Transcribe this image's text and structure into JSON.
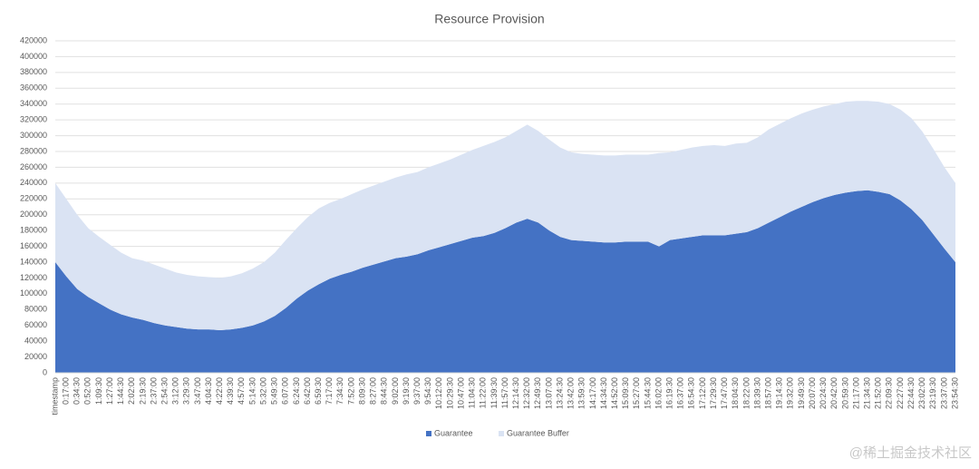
{
  "chart_data": {
    "type": "stacked_area",
    "title": "Resource Provision",
    "categories": [
      "timestamp",
      "0:17:00",
      "0:34:30",
      "0:52:00",
      "1:09:30",
      "1:27:00",
      "1:44:30",
      "2:02:00",
      "2:19:30",
      "2:37:00",
      "2:54:30",
      "3:12:00",
      "3:29:30",
      "3:47:00",
      "4:04:30",
      "4:22:00",
      "4:39:30",
      "4:57:00",
      "5:14:30",
      "5:32:00",
      "5:49:30",
      "6:07:00",
      "6:24:30",
      "6:42:00",
      "6:59:30",
      "7:17:00",
      "7:34:30",
      "7:52:00",
      "8:09:30",
      "8:27:00",
      "8:44:30",
      "9:02:00",
      "9:19:30",
      "9:37:00",
      "9:54:30",
      "10:12:00",
      "10:29:30",
      "10:47:00",
      "11:04:30",
      "11:22:00",
      "11:39:30",
      "11:57:00",
      "12:14:30",
      "12:32:00",
      "12:49:30",
      "13:07:00",
      "13:24:30",
      "13:42:00",
      "13:59:30",
      "14:17:00",
      "14:34:30",
      "14:52:00",
      "15:09:30",
      "15:27:00",
      "15:44:30",
      "16:02:00",
      "16:19:30",
      "16:37:00",
      "16:54:30",
      "17:12:00",
      "17:29:30",
      "17:47:00",
      "18:04:30",
      "18:22:00",
      "18:39:30",
      "18:57:00",
      "19:14:30",
      "19:32:00",
      "19:49:30",
      "20:07:00",
      "20:24:30",
      "20:42:00",
      "20:59:30",
      "21:17:00",
      "21:34:30",
      "21:52:00",
      "22:09:30",
      "22:27:00",
      "22:44:30",
      "23:02:00",
      "23:19:30",
      "23:37:00",
      "23:54:30"
    ],
    "series": [
      {
        "name": "Guarantee",
        "color": "#4472c4",
        "values": [
          140000,
          122000,
          106000,
          96000,
          88000,
          80000,
          74000,
          70000,
          67000,
          63000,
          60000,
          58000,
          56000,
          55000,
          55000,
          54000,
          55000,
          57000,
          60000,
          65000,
          72000,
          82000,
          94000,
          104000,
          112000,
          119000,
          124000,
          128000,
          133000,
          137000,
          141000,
          145000,
          147000,
          150000,
          155000,
          159000,
          163000,
          167000,
          171000,
          173000,
          177000,
          183000,
          190000,
          195000,
          190000,
          180000,
          172000,
          168000,
          167000,
          166000,
          165000,
          165000,
          166000,
          166000,
          166000,
          160000,
          168000,
          170000,
          172000,
          174000,
          174000,
          174000,
          176000,
          178000,
          183000,
          190000,
          197000,
          204000,
          210000,
          216000,
          221000,
          225000,
          228000,
          230000,
          231000,
          229000,
          226000,
          218000,
          207000,
          193000,
          175000,
          157000,
          140000
        ]
      },
      {
        "name": "Guarantee Buffer",
        "color": "#dae3f3",
        "values": [
          100000,
          98000,
          94000,
          87000,
          84000,
          82000,
          78000,
          75000,
          75000,
          74000,
          72000,
          69000,
          68000,
          67000,
          66000,
          66000,
          67000,
          69000,
          72000,
          75000,
          80000,
          86000,
          89000,
          93000,
          96000,
          96000,
          96000,
          98000,
          99000,
          100000,
          101000,
          102000,
          104000,
          104000,
          105000,
          106000,
          107000,
          109000,
          111000,
          114000,
          115000,
          115000,
          116000,
          119000,
          116000,
          115000,
          113000,
          111000,
          110000,
          110000,
          110000,
          110000,
          110000,
          110000,
          110000,
          118000,
          111000,
          112000,
          113000,
          113000,
          114000,
          113000,
          114000,
          113000,
          115000,
          118000,
          118000,
          118000,
          118000,
          117000,
          116000,
          115000,
          115000,
          114000,
          113000,
          114000,
          114000,
          115000,
          115000,
          112000,
          108000,
          103000,
          100000
        ]
      }
    ],
    "ylim": [
      0,
      420000
    ],
    "yticks": [
      0,
      20000,
      40000,
      60000,
      80000,
      100000,
      120000,
      140000,
      160000,
      180000,
      200000,
      220000,
      240000,
      260000,
      280000,
      300000,
      320000,
      340000,
      360000,
      380000,
      400000,
      420000
    ],
    "grid": true,
    "legend": "bottom"
  },
  "watermark": "@稀土掘金技术社区"
}
